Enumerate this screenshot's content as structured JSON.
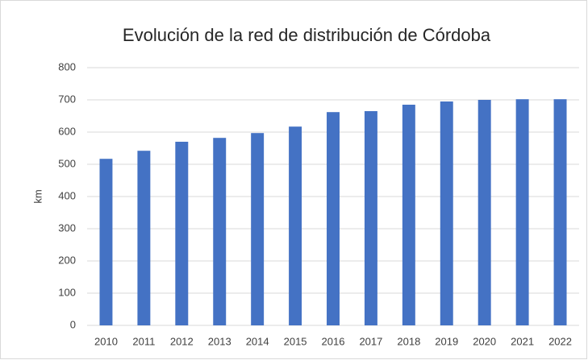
{
  "chart_data": {
    "type": "bar",
    "title": "Evolución de la red de distribución de Córdoba",
    "y_label": "km",
    "categories": [
      "2010",
      "2011",
      "2012",
      "2013",
      "2014",
      "2015",
      "2016",
      "2017",
      "2018",
      "2019",
      "2020",
      "2021",
      "2022"
    ],
    "values": [
      517,
      542,
      570,
      582,
      597,
      617,
      662,
      665,
      685,
      695,
      700,
      702,
      702
    ],
    "color": "#4472c4",
    "ylim": [
      0,
      800
    ],
    "yticks": [
      0,
      100,
      200,
      300,
      400,
      500,
      600,
      700,
      800
    ],
    "grid": true
  }
}
